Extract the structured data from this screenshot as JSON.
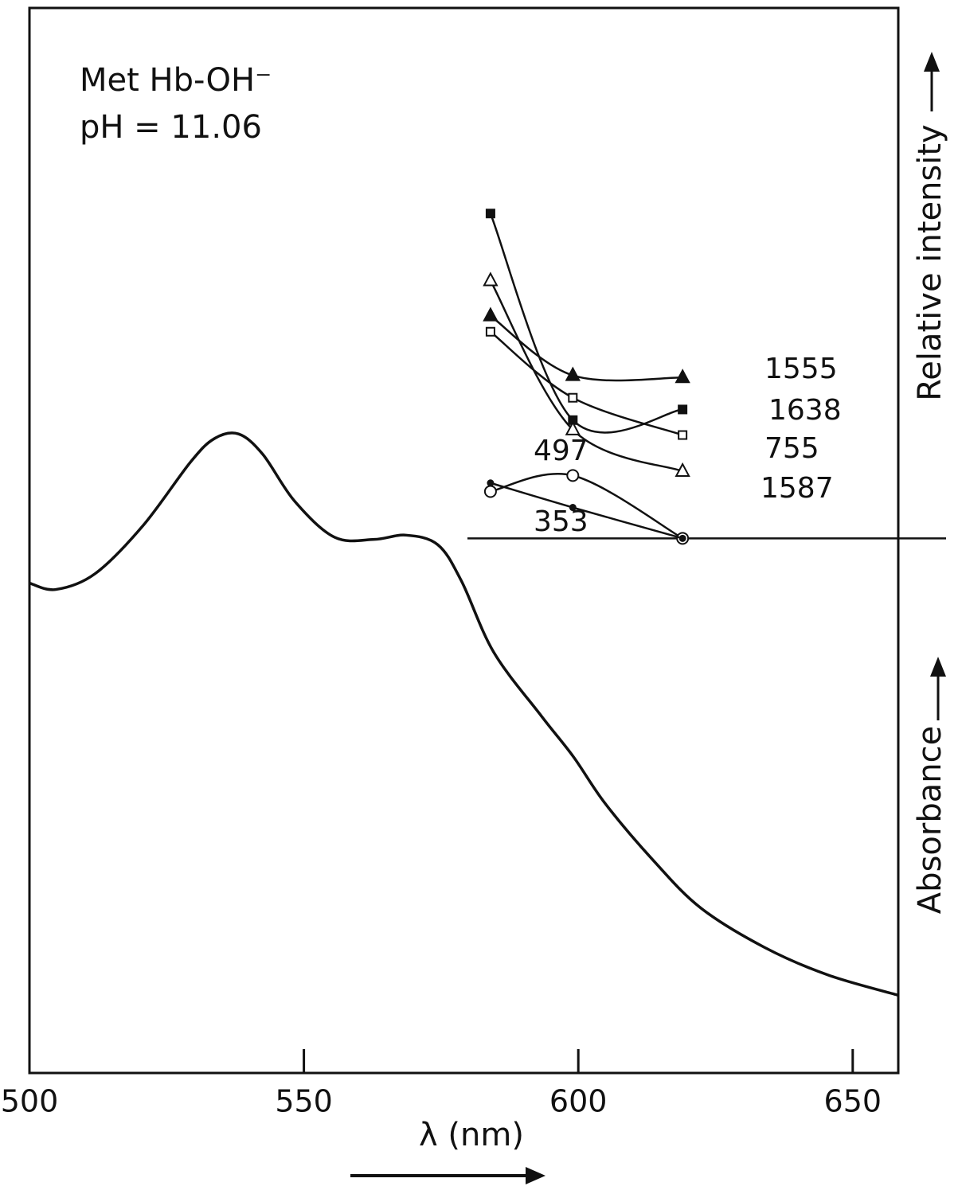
{
  "chart_data": {
    "type": "line",
    "title": "Met Hb-OH⁻",
    "subtitle": "pH = 11.06",
    "xlabel": "λ (nm)",
    "ylabel_top": "Relative intensity",
    "ylabel_bottom": "Absorbance",
    "xlim": [
      500,
      658.3
    ],
    "ylim": [
      0,
      100
    ],
    "xticks": [
      500,
      550,
      600,
      650
    ],
    "absorbance": {
      "x": [
        500,
        504.8,
        512.0,
        520.7,
        529.4,
        533.8,
        538.1,
        542.5,
        548.3,
        555.6,
        562.8,
        568.6,
        574.4,
        578.7,
        584.6,
        593.3,
        599.1,
        604.9,
        613.6,
        622.3,
        633.9,
        645.5,
        658.3
      ],
      "values": [
        46.0,
        45.4,
        46.9,
        51.4,
        57.4,
        59.6,
        60.0,
        58.1,
        53.7,
        50.3,
        50.1,
        50.5,
        49.6,
        46.2,
        39.5,
        33.5,
        29.7,
        25.3,
        20.0,
        15.5,
        11.8,
        9.2,
        7.3
      ],
      "color": "#111111"
    },
    "reference_line": 50.2,
    "series": [
      {
        "name": "1555",
        "marker": "filled-triangle",
        "color": "#111111",
        "x": [
          584,
          599,
          619
        ],
        "values": [
          71.1,
          65.5,
          65.3
        ]
      },
      {
        "name": "1638",
        "marker": "filled-square",
        "color": "#111111",
        "x": [
          584,
          599,
          619
        ],
        "values": [
          80.7,
          61.3,
          62.3
        ]
      },
      {
        "name": "755",
        "marker": "open-square",
        "color": "#111111",
        "x": [
          584,
          599,
          619
        ],
        "values": [
          69.6,
          63.4,
          59.9
        ]
      },
      {
        "name": "1587",
        "marker": "open-triangle",
        "color": "#111111",
        "x": [
          584,
          599,
          619
        ],
        "values": [
          74.4,
          60.4,
          56.5
        ]
      },
      {
        "name": "497",
        "marker": "open-circle",
        "color": "#111111",
        "x": [
          584,
          599,
          619
        ],
        "values": [
          54.6,
          56.1,
          50.2
        ]
      },
      {
        "name": "353",
        "marker": "dot",
        "color": "#111111",
        "x": [
          584,
          599,
          619
        ],
        "values": [
          55.4,
          53.1,
          50.2
        ]
      }
    ]
  }
}
